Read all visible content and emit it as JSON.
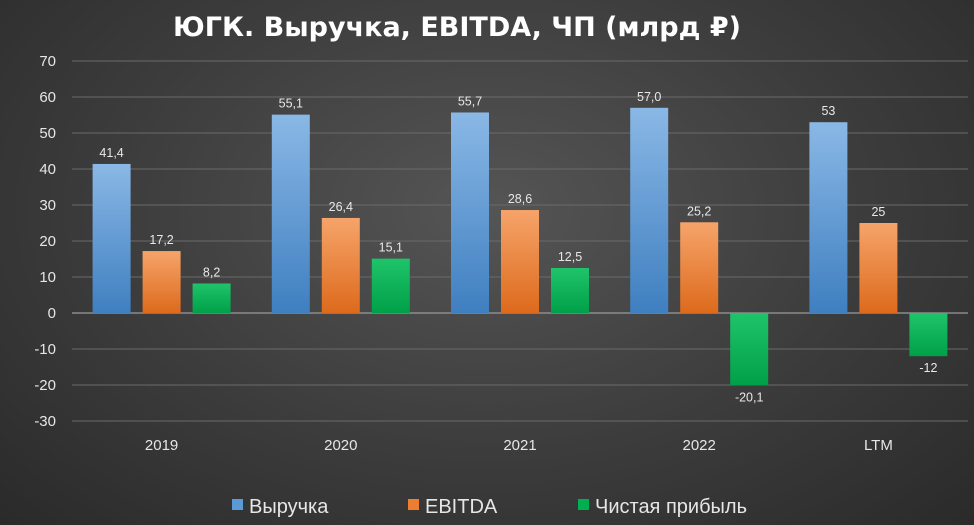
{
  "chart_data": {
    "type": "bar",
    "title": "ЮГК. Выручка, EBITDA, ЧП (млрд ₽)",
    "categories": [
      "2019",
      "2020",
      "2021",
      "2022",
      "LTM"
    ],
    "ylim": [
      -30,
      70
    ],
    "yticks": [
      70,
      60,
      50,
      40,
      30,
      20,
      10,
      0,
      -10,
      -20,
      -30
    ],
    "legend_position": "bottom",
    "series": [
      {
        "name": "Выручка",
        "color": "#5b9bd5",
        "values": [
          41.4,
          55.1,
          55.7,
          57.0,
          53
        ],
        "labels": [
          "41,4",
          "55,1",
          "55,7",
          "57,0",
          "53"
        ]
      },
      {
        "name": "EBITDA",
        "color": "#ed7d31",
        "values": [
          17.2,
          26.4,
          28.6,
          25.2,
          25
        ],
        "labels": [
          "17,2",
          "26,4",
          "28,6",
          "25,2",
          "25"
        ]
      },
      {
        "name": "Чистая прибыль",
        "color": "#00b050",
        "values": [
          8.2,
          15.1,
          12.5,
          -20.1,
          -12
        ],
        "labels": [
          "8,2",
          "15,1",
          "12,5",
          "-20,1",
          "-12"
        ]
      }
    ]
  }
}
